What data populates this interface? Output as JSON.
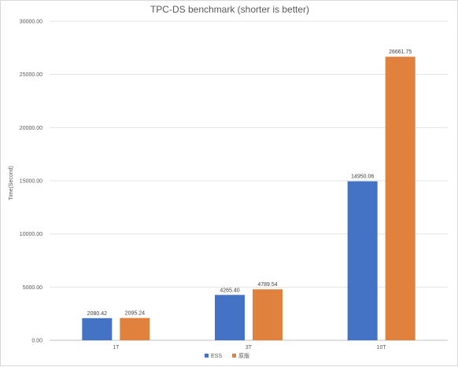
{
  "chart_data": {
    "type": "bar",
    "title": "TPC-DS benchmark (shorter is better)",
    "xlabel": "",
    "ylabel": "Time(Second)",
    "categories": [
      "1T",
      "3T",
      "10T"
    ],
    "series": [
      {
        "name": "ESS",
        "color": "#4472c4",
        "values": [
          2080.42,
          4265.4,
          14950.06
        ],
        "labels": [
          "2080.42",
          "4265.40",
          "14950.06"
        ]
      },
      {
        "name": "原版",
        "color": "#e0823e",
        "values": [
          2095.24,
          4789.54,
          26661.75
        ],
        "labels": [
          "2095.24",
          "4789.54",
          "26661.75"
        ]
      }
    ],
    "ylim": [
      0,
      30000
    ],
    "yticks": [
      0,
      5000,
      10000,
      15000,
      20000,
      25000,
      30000
    ],
    "ytick_labels": [
      "0.00",
      "5000.00",
      "10000.00",
      "15000.00",
      "20000.00",
      "25000.00",
      "30000.00"
    ],
    "grid": true,
    "legend_position": "bottom"
  }
}
